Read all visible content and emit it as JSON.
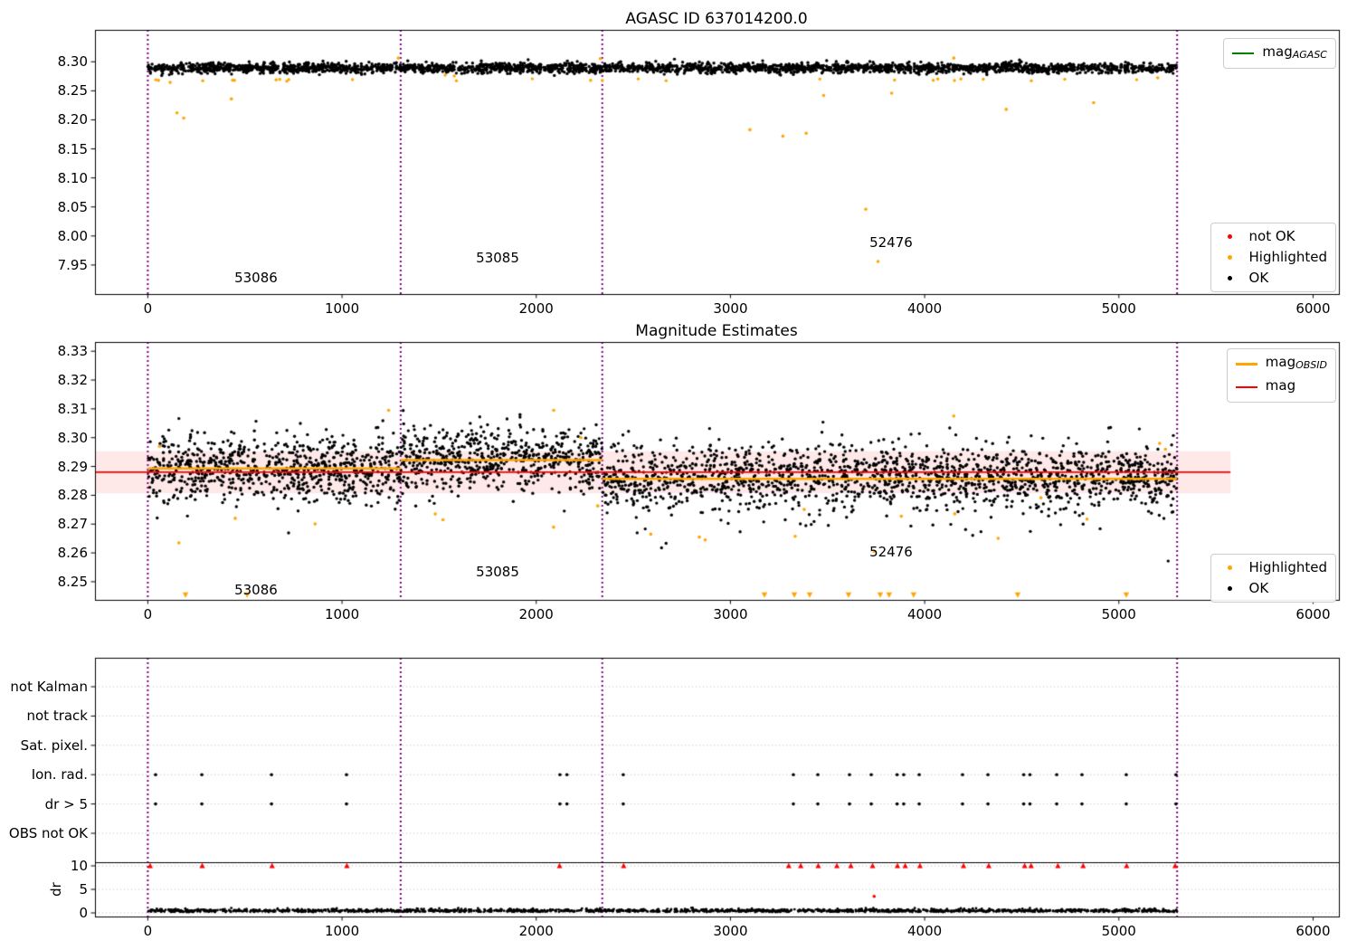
{
  "colors": {
    "ok": "#000000",
    "highlighted": "#ffa500",
    "not_ok": "#ff0000",
    "mag_line": "#ff0000",
    "mag_agasc_line": "#008000",
    "mag_obsid_line": "#ffa500",
    "vline": "#800080",
    "band_fill": "rgba(255,0,0,0.09)",
    "grid": "#bbbbbb",
    "spine": "#000000"
  },
  "chart_data": [
    {
      "type": "scatter",
      "title": "AGASC ID 637014200.0",
      "xlim": [
        -272,
        6133
      ],
      "ylim": [
        7.9,
        8.355
      ],
      "xticks": [
        "0",
        "1000",
        "2000",
        "3000",
        "4000",
        "5000",
        "6000"
      ],
      "yticks": [
        "8.30",
        "8.25",
        "8.20",
        "8.15",
        "8.10",
        "8.05",
        "8.00",
        "7.95"
      ],
      "vlines": [
        0,
        1302,
        2340,
        5300
      ],
      "series": {
        "ok_band": {
          "n": 2800,
          "x_range": [
            0,
            5300
          ],
          "mean": 8.2895,
          "sd": 0.0042,
          "clip": [
            8.2715,
            8.3055
          ],
          "low_tail_frac": 0.008,
          "low_tail": 0.012
        },
        "highlighted_edge": {
          "n": 22,
          "x_range": [
            0,
            5300
          ],
          "y_mean": 8.269,
          "y_sd": 0.0012
        },
        "highlighted_points": [
          [
            55,
            8.268
          ],
          [
            115,
            8.2645
          ],
          [
            150,
            8.212
          ],
          [
            185,
            8.203
          ],
          [
            430,
            8.236
          ],
          [
            446,
            8.268
          ],
          [
            661,
            8.269
          ],
          [
            1290,
            8.3065
          ],
          [
            1531,
            8.277
          ],
          [
            1578,
            8.2755
          ],
          [
            2280,
            8.268
          ],
          [
            2330,
            8.3055
          ],
          [
            3100,
            8.183
          ],
          [
            3270,
            8.172
          ],
          [
            3390,
            8.177
          ],
          [
            3480,
            8.242
          ],
          [
            3697,
            8.046
          ],
          [
            3760,
            7.956
          ],
          [
            3830,
            8.246
          ],
          [
            4150,
            8.3065
          ],
          [
            4420,
            8.218
          ],
          [
            4870,
            8.2295
          ],
          [
            5200,
            8.2725
          ]
        ]
      },
      "legend_top_right": {
        "items": [
          {
            "label": "mag",
            "sub": "AGASC",
            "color": "#008000",
            "type": "line"
          }
        ]
      },
      "legend_bottom_right": {
        "items": [
          {
            "label": "not OK",
            "color": "#ff0000"
          },
          {
            "label": "Highlighted",
            "color": "#ffa500"
          },
          {
            "label": "OK",
            "color": "#000000"
          }
        ]
      },
      "annotations": [
        {
          "text": "53086",
          "x": 557,
          "y": 7.928
        },
        {
          "text": "53085",
          "x": 1801,
          "y": 7.962
        },
        {
          "text": "52476",
          "x": 3827,
          "y": 7.989
        }
      ]
    },
    {
      "type": "scatter",
      "title": "Magnitude Estimates",
      "xlim": [
        -272,
        6133
      ],
      "ylim": [
        8.2437,
        8.3332
      ],
      "xticks": [
        "0",
        "1000",
        "2000",
        "3000",
        "4000",
        "5000",
        "6000"
      ],
      "yticks": [
        "8.33",
        "8.32",
        "8.31",
        "8.30",
        "8.29",
        "8.28",
        "8.27",
        "8.26",
        "8.25"
      ],
      "vlines": [
        0,
        1302,
        2340,
        5300
      ],
      "mag_line": {
        "y": 8.288,
        "x0": -272,
        "x1": 5575
      },
      "mag_band": {
        "y0": 8.2807,
        "y1": 8.2953,
        "x0": -272,
        "x1": 5575
      },
      "obsid_segments": [
        {
          "x0": 0,
          "x1": 1302,
          "y": 8.2893
        },
        {
          "x0": 1302,
          "x1": 2340,
          "y": 8.2922
        },
        {
          "x0": 2340,
          "x1": 5300,
          "y": 8.2857
        }
      ],
      "series": {
        "ok_scatter": {
          "n": 3100,
          "x_range": [
            0,
            5300
          ],
          "sd": 0.0057,
          "clip": [
            8.2475,
            8.3105
          ],
          "low_tail_frac": 0.02,
          "low_tail": 0.018,
          "segment_means": [
            [
              0,
              1302,
              8.2897
            ],
            [
              1302,
              2340,
              8.2927
            ],
            [
              2340,
              5300,
              8.2862
            ]
          ]
        },
        "highlighted_extra": {
          "n": 10,
          "y_mean": 8.2715,
          "y_sd": 0.0035,
          "x_range": [
            0,
            5300
          ]
        },
        "highlighted_points": [
          [
            60,
            8.297
          ],
          [
            160,
            8.2635
          ],
          [
            450,
            8.272
          ],
          [
            1240,
            8.3095
          ],
          [
            1480,
            8.2735
          ],
          [
            1520,
            8.2715
          ],
          [
            2090,
            8.3095
          ],
          [
            2230,
            8.3
          ],
          [
            2590,
            8.2665
          ],
          [
            2840,
            8.2655
          ],
          [
            2870,
            8.2645
          ],
          [
            3740,
            8.2605
          ],
          [
            4150,
            8.3075
          ],
          [
            5210,
            8.298
          ],
          [
            5240,
            8.296
          ]
        ],
        "highlighted_clipped_low_x": [
          194,
          511,
          3175,
          3329,
          3408,
          3608,
          3771,
          3817,
          3943,
          4479,
          5038
        ],
        "clip_marker_y": 8.2455
      },
      "legend_top_right": {
        "items": [
          {
            "label": "mag",
            "sub": "OBSID",
            "color": "#ffa500",
            "type": "line"
          },
          {
            "label": "mag",
            "sub": "",
            "color": "#ff0000",
            "type": "line"
          }
        ]
      },
      "legend_bottom_right": {
        "items": [
          {
            "label": "Highlighted",
            "color": "#ffa500"
          },
          {
            "label": "OK",
            "color": "#000000"
          }
        ]
      },
      "annotations": [
        {
          "text": "53086",
          "x": 557,
          "y": 8.2473
        },
        {
          "text": "53085",
          "x": 1801,
          "y": 8.2533
        },
        {
          "text": "52476",
          "x": 3827,
          "y": 8.2602
        }
      ]
    },
    {
      "type": "flags",
      "rows": [
        "not Kalman",
        "not track",
        "Sat. pixel.",
        "Ion. rad.",
        "dr > 5",
        "OBS not OK"
      ],
      "flag_rows": [
        "Ion. rad.",
        "dr > 5"
      ],
      "dr_axis": {
        "label": "dr",
        "ticks": [
          "10",
          "5",
          "0"
        ]
      },
      "xticks": [
        "0",
        "1000",
        "2000",
        "3000",
        "4000",
        "5000",
        "6000"
      ],
      "vlines": [
        0,
        1302,
        2340,
        5300
      ],
      "hline_dr": 10.67,
      "flag_x": [
        40,
        278,
        637,
        1023,
        2122,
        2158,
        2448,
        3324,
        3450,
        3613,
        3725,
        3858,
        3892,
        3972,
        4195,
        4326,
        4510,
        4542,
        4680,
        4810,
        5038,
        5294
      ],
      "red_clipped_dr10_x": [
        12,
        280,
        640,
        1025,
        2120,
        2450,
        3300,
        3362,
        3452,
        3548,
        3620,
        3732,
        3860,
        3900,
        3976,
        4200,
        4330,
        4515,
        4548,
        4686,
        4816,
        5040,
        5290
      ],
      "red_outlier": {
        "x": 3740,
        "dr": 3.5
      },
      "dr_baseline": {
        "n": 1700,
        "x_range": [
          0,
          5300
        ],
        "mean": 0.42,
        "sd": 0.26,
        "clip": [
          0.05,
          1.9
        ]
      }
    }
  ]
}
